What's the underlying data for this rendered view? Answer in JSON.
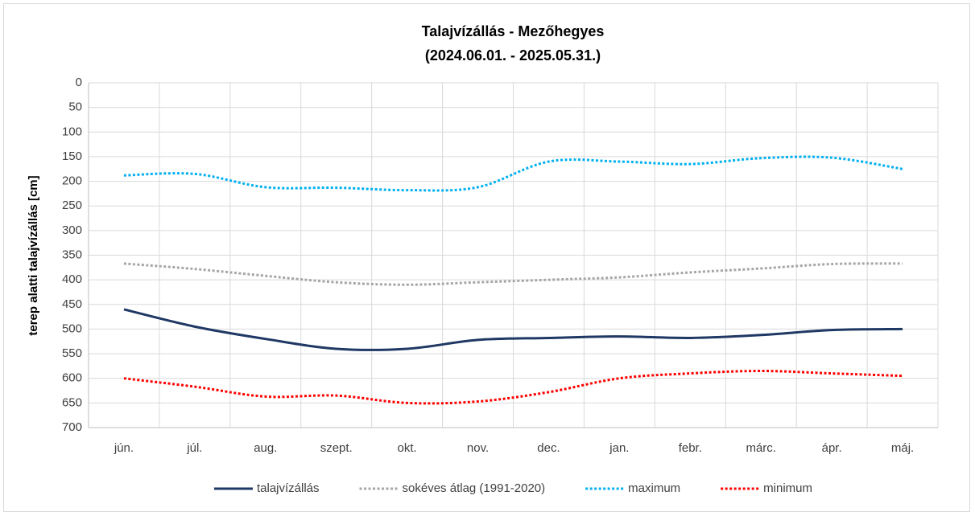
{
  "chart_data": {
    "type": "line",
    "title": "Talajvízállás - Mezőhegyes",
    "subtitle": "(2024.06.01. - 2025.05.31.)",
    "y_label": "terep alatti talajvízállás [cm]",
    "categories": [
      "jún.",
      "júl.",
      "aug.",
      "szept.",
      "okt.",
      "nov.",
      "dec.",
      "jan.",
      "febr.",
      "márc.",
      "ápr.",
      "máj."
    ],
    "series": [
      {
        "name": "talajvízállás",
        "color": "#1f3864",
        "dash": "solid",
        "values": [
          460,
          495,
          520,
          540,
          540,
          522,
          518,
          515,
          518,
          512,
          502,
          500
        ]
      },
      {
        "name": "sokéves átlag (1991-2020)",
        "color": "#a6a6a6",
        "dash": "dotted",
        "values": [
          367,
          378,
          392,
          405,
          410,
          405,
          400,
          395,
          385,
          377,
          368,
          367
        ]
      },
      {
        "name": "maximum",
        "color": "#00b0f0",
        "dash": "dotted",
        "values": [
          188,
          185,
          212,
          213,
          218,
          212,
          160,
          160,
          165,
          153,
          152,
          175
        ]
      },
      {
        "name": "minimum",
        "color": "#ff0000",
        "dash": "dotted",
        "values": [
          600,
          617,
          637,
          635,
          650,
          647,
          628,
          600,
          590,
          585,
          590,
          595
        ]
      }
    ],
    "ylim": [
      0,
      700
    ],
    "yticks": [
      0,
      50,
      100,
      150,
      200,
      250,
      300,
      350,
      400,
      450,
      500,
      550,
      600,
      650,
      700
    ],
    "y_reversed": true,
    "grid": true,
    "smooth": true,
    "legend": "bottom"
  }
}
